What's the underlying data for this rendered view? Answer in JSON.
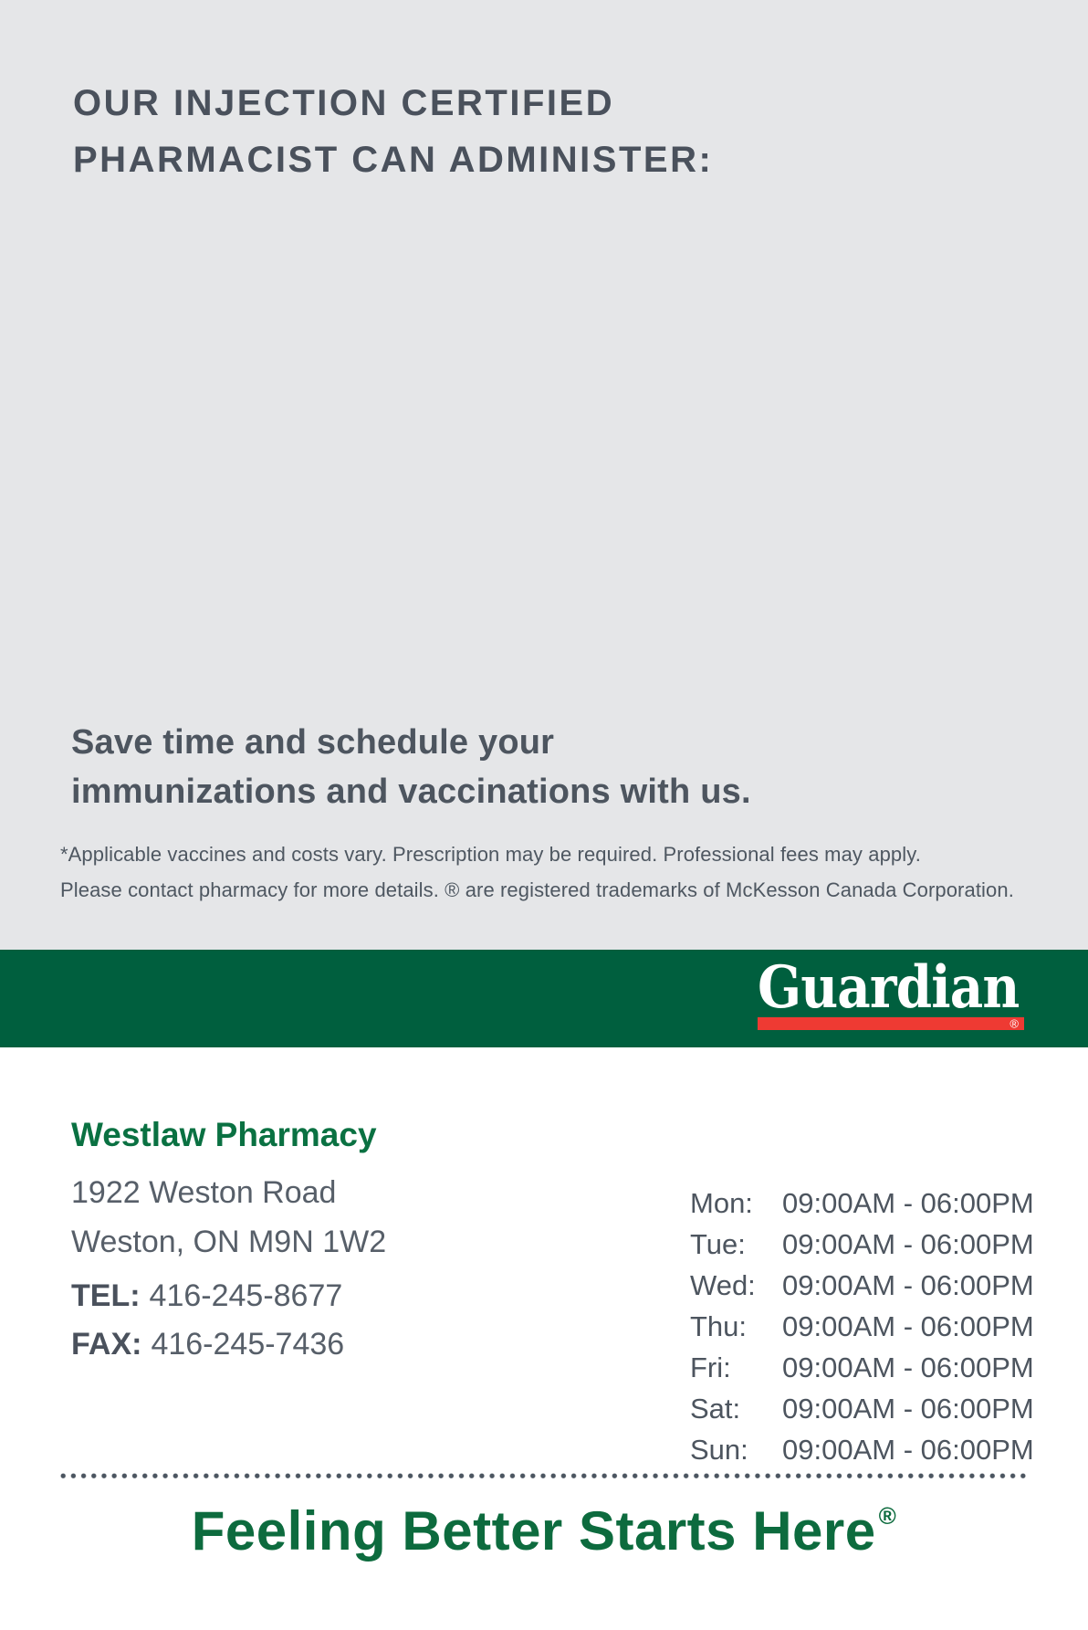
{
  "top_section": {
    "heading_line1": "OUR INJECTION CERTIFIED",
    "heading_line2": "PHARMACIST CAN ADMINISTER:",
    "subheading_line1": "Save time and schedule your",
    "subheading_line2": "immunizations and vaccinations with us.",
    "disclaimer_line1": "*Applicable vaccines and costs vary. Prescription may be required. Professional fees may apply.",
    "disclaimer_line2": "Please contact pharmacy for more details. ® are registered trademarks of McKesson Canada Corporation."
  },
  "brand": {
    "logo_text": "Guardian",
    "registered_mark": "®",
    "green": "#005f3e",
    "red": "#ee3a33"
  },
  "pharmacy": {
    "name": "Westlaw Pharmacy",
    "address_line1": "1922 Weston Road",
    "address_line2": "Weston, ON M9N 1W2",
    "tel_label": "TEL:",
    "tel_number": "416-245-8677",
    "fax_label": "FAX:",
    "fax_number": "416-245-7436"
  },
  "hours": [
    {
      "day": "Mon:",
      "time": "09:00AM - 06:00PM"
    },
    {
      "day": "Tue:",
      "time": "09:00AM - 06:00PM"
    },
    {
      "day": "Wed:",
      "time": "09:00AM - 06:00PM"
    },
    {
      "day": "Thu:",
      "time": "09:00AM - 06:00PM"
    },
    {
      "day": "Fri:",
      "time": "09:00AM - 06:00PM"
    },
    {
      "day": "Sat:",
      "time": "09:00AM - 06:00PM"
    },
    {
      "day": "Sun:",
      "time": "09:00AM - 06:00PM"
    }
  ],
  "tagline": {
    "text": "Feeling Better Starts Here",
    "registered_mark": "®",
    "color": "#0d6b3e"
  }
}
